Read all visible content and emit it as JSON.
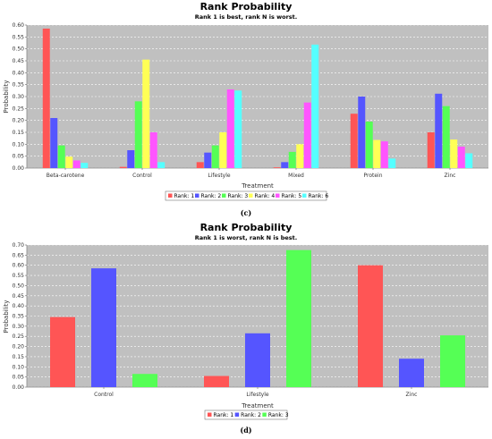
{
  "chart_data": [
    {
      "type": "bar",
      "title": "Rank Probability",
      "subtitle": "Rank 1 is best, rank N is worst.",
      "xlabel": "Treatment",
      "ylabel": "Probability",
      "ylim": [
        0,
        0.6
      ],
      "yticks": [
        "0.00",
        "0.05",
        "0.10",
        "0.15",
        "0.20",
        "0.25",
        "0.30",
        "0.35",
        "0.40",
        "0.45",
        "0.50",
        "0.55",
        "0.60"
      ],
      "categories": [
        "Beta-carotene",
        "Control",
        "Lifestyle",
        "Mixed",
        "Protein",
        "Zinc"
      ],
      "series": [
        {
          "name": "Rank: 1",
          "color": "#ff5555",
          "values": [
            0.585,
            0.005,
            0.025,
            0.003,
            0.228,
            0.15
          ]
        },
        {
          "name": "Rank: 2",
          "color": "#5555ff",
          "values": [
            0.21,
            0.075,
            0.065,
            0.025,
            0.3,
            0.312
          ]
        },
        {
          "name": "Rank: 3",
          "color": "#55ff55",
          "values": [
            0.095,
            0.28,
            0.095,
            0.068,
            0.195,
            0.26
          ]
        },
        {
          "name": "Rank: 4",
          "color": "#ffff55",
          "values": [
            0.048,
            0.455,
            0.15,
            0.1,
            0.118,
            0.12
          ]
        },
        {
          "name": "Rank: 5",
          "color": "#ff55ff",
          "values": [
            0.032,
            0.15,
            0.33,
            0.275,
            0.112,
            0.09
          ]
        },
        {
          "name": "Rank: 6",
          "color": "#55ffff",
          "values": [
            0.022,
            0.025,
            0.325,
            0.518,
            0.04,
            0.062
          ]
        }
      ],
      "grid": true,
      "legend": "bottom-center",
      "caption": "(c)"
    },
    {
      "type": "bar",
      "title": "Rank Probability",
      "subtitle": "Rank 1 is worst, rank N is best.",
      "xlabel": "Treatment",
      "ylabel": "Probability",
      "ylim": [
        0,
        0.7
      ],
      "yticks": [
        "0.00",
        "0.05",
        "0.10",
        "0.15",
        "0.20",
        "0.25",
        "0.30",
        "0.35",
        "0.40",
        "0.45",
        "0.50",
        "0.55",
        "0.60",
        "0.65",
        "0.70"
      ],
      "categories": [
        "Control",
        "Lifestyle",
        "Zinc"
      ],
      "series": [
        {
          "name": "Rank: 1",
          "color": "#ff5555",
          "values": [
            0.345,
            0.055,
            0.6
          ]
        },
        {
          "name": "Rank: 2",
          "color": "#5555ff",
          "values": [
            0.585,
            0.265,
            0.14
          ]
        },
        {
          "name": "Rank: 3",
          "color": "#55ff55",
          "values": [
            0.065,
            0.675,
            0.255
          ]
        }
      ],
      "grid": true,
      "legend": "bottom-center",
      "caption": "(d)"
    }
  ]
}
